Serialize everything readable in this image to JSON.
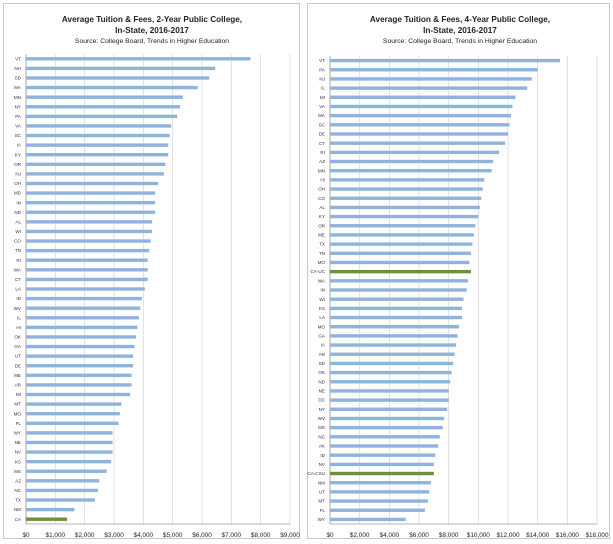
{
  "colors": {
    "bar": "#8eb3dc",
    "highlight": "#6f8f3a",
    "grid": "#d6d6d6",
    "text": "#222222"
  },
  "chart_data": [
    {
      "type": "bar",
      "orientation": "horizontal",
      "title": "Average Tuition & Fees, 2-Year Public College,",
      "title_line2": "In-State, 2016-2017",
      "subtitle": "Source:  College Board, Trends in Higher Education",
      "xlim": [
        0,
        9000
      ],
      "xticks": [
        0,
        1000,
        2000,
        3000,
        4000,
        5000,
        6000,
        7000,
        8000,
        9000
      ],
      "xtick_labels": [
        "$0",
        "$1,000",
        "$2,000",
        "$3,000",
        "$4,000",
        "$5,000",
        "$6,000",
        "$7,000",
        "$8,000",
        "$9,000"
      ],
      "categories": [
        "VT",
        "NH",
        "SD",
        "MA",
        "MN",
        "NY",
        "PA",
        "VA",
        "SC",
        "IA",
        "KY",
        "OR",
        "NJ",
        "OH",
        "MD",
        "IN",
        "ND",
        "AL",
        "WI",
        "CO",
        "TN",
        "RI",
        "WA",
        "CT",
        "LA",
        "ID",
        "WV",
        "IL",
        "HI",
        "OK",
        "GA",
        "UT",
        "DE",
        "ME",
        "AR",
        "MI",
        "MT",
        "MO",
        "FL",
        "WY",
        "NE",
        "NV",
        "KS",
        "MS",
        "AZ",
        "NC",
        "TX",
        "NM",
        "CA"
      ],
      "values": [
        7650,
        6450,
        6250,
        5850,
        5350,
        5250,
        5150,
        4950,
        4900,
        4850,
        4850,
        4750,
        4700,
        4500,
        4400,
        4400,
        4400,
        4300,
        4300,
        4250,
        4200,
        4150,
        4150,
        4150,
        4050,
        3950,
        3900,
        3850,
        3800,
        3750,
        3700,
        3650,
        3650,
        3600,
        3600,
        3550,
        3250,
        3200,
        3150,
        2950,
        2950,
        2950,
        2900,
        2750,
        2500,
        2450,
        2350,
        1650,
        1400
      ],
      "highlight": [
        "CA"
      ]
    },
    {
      "type": "bar",
      "orientation": "horizontal",
      "title": "Average Tuition & Fees, 4-Year Public College,",
      "title_line2": "In-State, 2016-2017",
      "subtitle": "Source:  College Board, Trends in Higher Education",
      "xlim": [
        0,
        18000
      ],
      "xticks": [
        0,
        2000,
        4000,
        6000,
        8000,
        10000,
        12000,
        14000,
        16000,
        18000
      ],
      "xtick_labels": [
        "$0",
        "$2,000",
        "$4,000",
        "$6,000",
        "$8,000",
        "$10,000",
        "$12,000",
        "$14,000",
        "$16,000",
        "$18,000"
      ],
      "categories": [
        "VT",
        "PA",
        "NJ",
        "IL",
        "MI",
        "VA",
        "MA",
        "SC",
        "DE",
        "CT",
        "RI",
        "AZ",
        "MN",
        "HI",
        "OH",
        "CO",
        "AL",
        "KY",
        "OR",
        "ME",
        "TX",
        "TN",
        "MO",
        "CA-UC",
        "WA",
        "IN",
        "WI",
        "KS",
        "LA",
        "MO",
        "GA",
        "IA",
        "AR",
        "SD",
        "OK",
        "ND",
        "NE",
        "DC",
        "NY",
        "WV",
        "MS",
        "NC",
        "AK",
        "ID",
        "NV",
        "CA-CSU",
        "NM",
        "UT",
        "MT",
        "FL",
        "WY"
      ],
      "values": [
        15500,
        14000,
        13600,
        13300,
        12500,
        12300,
        12200,
        12100,
        12000,
        11800,
        11400,
        11000,
        10900,
        10400,
        10300,
        10200,
        10100,
        10000,
        9800,
        9700,
        9600,
        9500,
        9400,
        9500,
        9300,
        9200,
        9000,
        8900,
        8900,
        8700,
        8600,
        8500,
        8400,
        8300,
        8200,
        8100,
        8000,
        8000,
        7900,
        7700,
        7600,
        7400,
        7300,
        7100,
        7000,
        7000,
        6800,
        6700,
        6600,
        6400,
        5100
      ],
      "highlight": [
        "CA-UC",
        "CA-CSU"
      ]
    }
  ]
}
